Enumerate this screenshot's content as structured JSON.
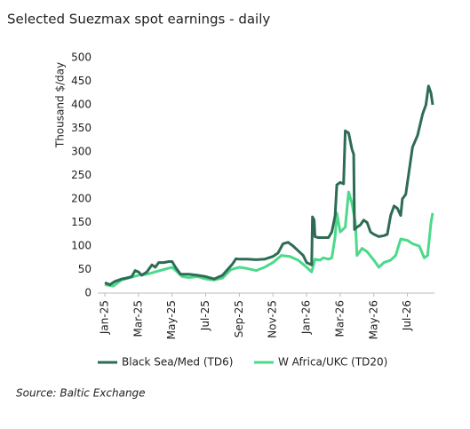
{
  "chart_data": {
    "type": "line",
    "title": "Selected Suezmax spot earnings - daily",
    "y_label": "Thousand $/day",
    "source": "Source: Baltic Exchange",
    "xlim": [
      0,
      19.5
    ],
    "xticks": [
      {
        "value": 0,
        "label": "Jan-25"
      },
      {
        "value": 2,
        "label": "Mar-25"
      },
      {
        "value": 4,
        "label": "May-25"
      },
      {
        "value": 6,
        "label": "Jul-25"
      },
      {
        "value": 8,
        "label": "Sep-25"
      },
      {
        "value": 10,
        "label": "Nov-25"
      },
      {
        "value": 12,
        "label": "Jan-26"
      },
      {
        "value": 14,
        "label": "Mar-26"
      },
      {
        "value": 16,
        "label": "May-26"
      },
      {
        "value": 18,
        "label": "Jul-26"
      }
    ],
    "ylim": [
      0,
      500
    ],
    "yticks": [
      0,
      50,
      100,
      150,
      200,
      250,
      300,
      350,
      400,
      450,
      500
    ],
    "grid": false,
    "series": [
      {
        "name": "Black Sea/Med (TD6)",
        "color": "#2e6b55",
        "x": [
          0,
          0.3,
          0.6,
          1,
          1.3,
          1.6,
          1.8,
          2,
          2.2,
          2.5,
          2.8,
          3,
          3.2,
          3.5,
          3.8,
          4,
          4.2,
          4.5,
          5,
          5.5,
          6,
          6.5,
          7,
          7.3,
          7.6,
          7.8,
          8,
          8.5,
          9,
          9.5,
          10,
          10.3,
          10.6,
          10.9,
          11.2,
          11.5,
          11.8,
          12,
          12.3,
          12.35,
          12.45,
          12.5,
          12.7,
          13,
          13.3,
          13.5,
          13.7,
          13.8,
          14,
          14.2,
          14.3,
          14.5,
          14.7,
          14.8,
          14.85,
          15,
          15.2,
          15.4,
          15.6,
          15.8,
          16,
          16.3,
          16.6,
          16.8,
          17,
          17.2,
          17.4,
          17.6,
          17.7,
          17.9,
          18.3,
          18.6,
          18.9,
          19.1,
          19.25,
          19.4,
          19.5
        ],
        "values": [
          22,
          18,
          25,
          30,
          32,
          35,
          48,
          45,
          38,
          45,
          60,
          55,
          65,
          65,
          67,
          67,
          55,
          40,
          40,
          38,
          35,
          30,
          38,
          50,
          62,
          73,
          72,
          72,
          71,
          72,
          78,
          85,
          105,
          108,
          100,
          90,
          80,
          65,
          60,
          162,
          155,
          120,
          118,
          118,
          118,
          130,
          165,
          230,
          235,
          232,
          345,
          340,
          305,
          295,
          135,
          140,
          145,
          155,
          150,
          130,
          125,
          120,
          122,
          125,
          165,
          185,
          180,
          165,
          200,
          210,
          310,
          335,
          380,
          400,
          440,
          425,
          400
        ]
      },
      {
        "name": "W Africa/UKC (TD20)",
        "color": "#4cd98a",
        "x": [
          0,
          0.5,
          1,
          1.5,
          2,
          2.5,
          3,
          3.5,
          4,
          4.3,
          4.6,
          5,
          5.5,
          6,
          6.5,
          7,
          7.5,
          8,
          8.5,
          9,
          9.5,
          10,
          10.5,
          11,
          11.5,
          12,
          12.3,
          12.5,
          12.8,
          13,
          13.3,
          13.5,
          13.7,
          13.8,
          14,
          14.3,
          14.5,
          14.7,
          14.9,
          15,
          15.3,
          15.6,
          16,
          16.3,
          16.6,
          17,
          17.3,
          17.6,
          18,
          18.3,
          18.7,
          19,
          19.2,
          19.4,
          19.5
        ],
        "values": [
          18,
          15,
          28,
          33,
          38,
          40,
          45,
          50,
          55,
          45,
          35,
          33,
          35,
          30,
          28,
          32,
          50,
          55,
          52,
          48,
          55,
          65,
          80,
          78,
          70,
          55,
          45,
          72,
          70,
          75,
          72,
          75,
          120,
          170,
          130,
          140,
          215,
          190,
          150,
          80,
          95,
          88,
          70,
          55,
          65,
          70,
          80,
          115,
          112,
          105,
          100,
          75,
          80,
          150,
          170
        ]
      }
    ]
  }
}
